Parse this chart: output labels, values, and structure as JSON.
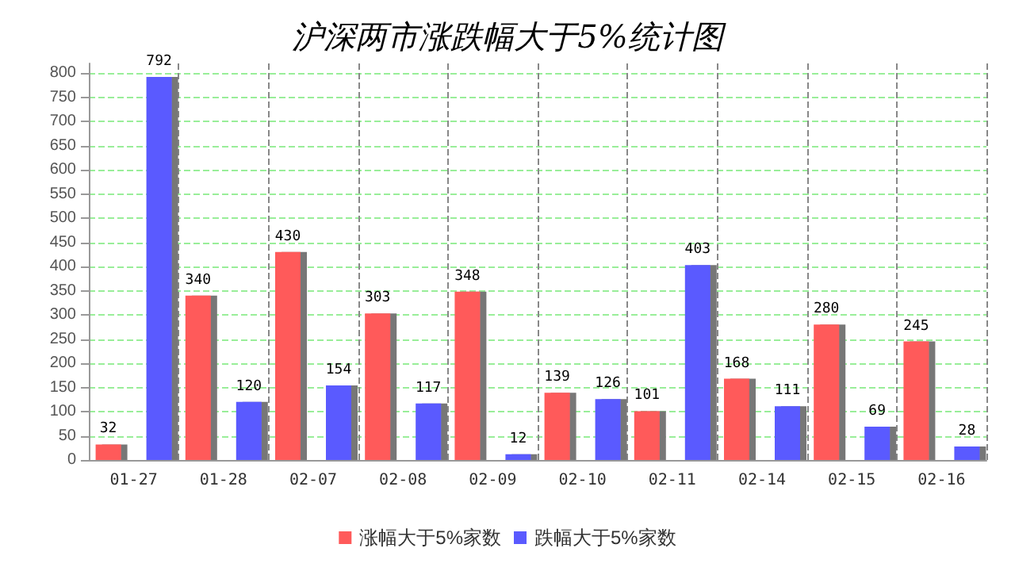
{
  "chart_data": {
    "type": "bar",
    "title": "沪深两市涨跌幅大于5%统计图",
    "categories": [
      "01-27",
      "01-28",
      "02-07",
      "02-08",
      "02-09",
      "02-10",
      "02-11",
      "02-14",
      "02-15",
      "02-16"
    ],
    "series": [
      {
        "name": "涨幅大于5%家数",
        "color": "#ff5a5a",
        "values": [
          32,
          340,
          430,
          303,
          348,
          139,
          101,
          168,
          280,
          245
        ]
      },
      {
        "name": "跌幅大于5%家数",
        "color": "#5a5aff",
        "values": [
          792,
          120,
          154,
          117,
          12,
          126,
          403,
          111,
          69,
          28
        ]
      }
    ],
    "ylim": [
      0,
      820
    ],
    "yticks": [
      0,
      50,
      100,
      150,
      200,
      250,
      300,
      350,
      400,
      450,
      500,
      550,
      600,
      650,
      700,
      750,
      800
    ],
    "grid": true,
    "legend": "bottom",
    "data_labels": true
  }
}
